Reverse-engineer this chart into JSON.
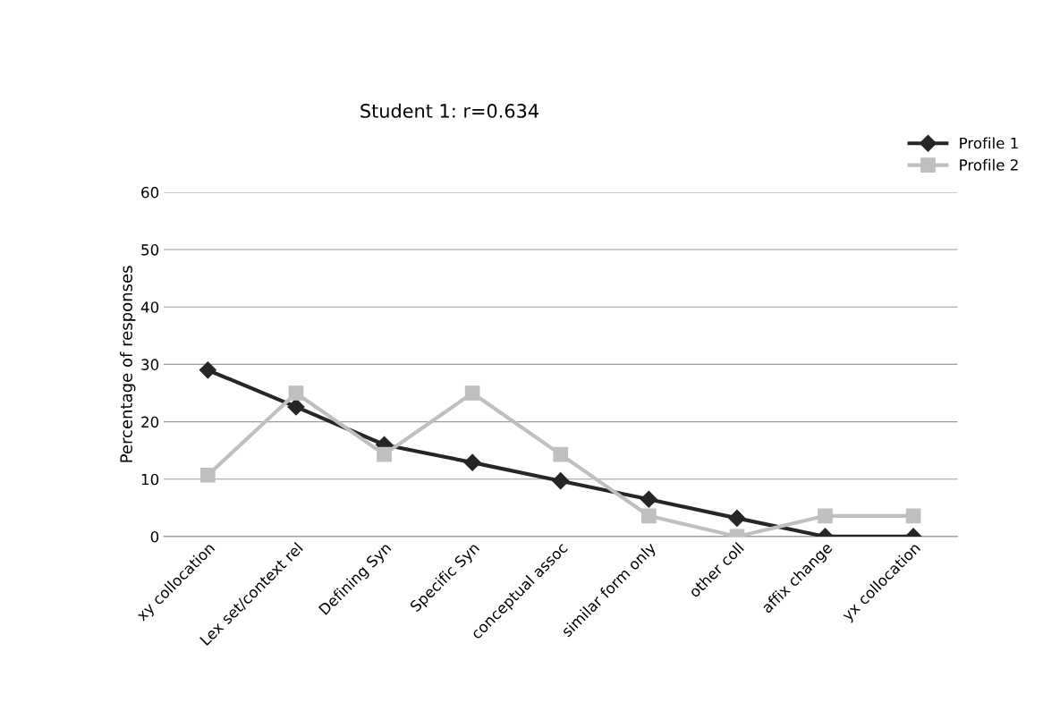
{
  "chart_data": {
    "type": "line",
    "title": "Student 1: r=0.634",
    "ylabel": "Percentage of responses",
    "categories": [
      "xy collocation",
      "Lex set/context rel",
      "Defining Syn",
      "Specific Syn",
      "conceptual assoc",
      "similar form only",
      "other coll",
      "affix change",
      "yx collocation"
    ],
    "series": [
      {
        "name": "Profile 1",
        "color": "#262626",
        "marker": "diamond",
        "values": [
          29,
          22.6,
          16,
          12.9,
          9.7,
          6.5,
          3.2,
          0,
          0
        ]
      },
      {
        "name": "Profile 2",
        "color": "#bfbfbf",
        "marker": "square",
        "values": [
          10.7,
          25,
          14.3,
          25,
          14.3,
          3.6,
          0,
          3.6,
          3.6
        ]
      }
    ],
    "ylim": [
      0,
      60
    ],
    "yticks": [
      0,
      10,
      20,
      30,
      40,
      50,
      60
    ],
    "grid": "y",
    "legend": "top right",
    "line_style": "solid"
  }
}
